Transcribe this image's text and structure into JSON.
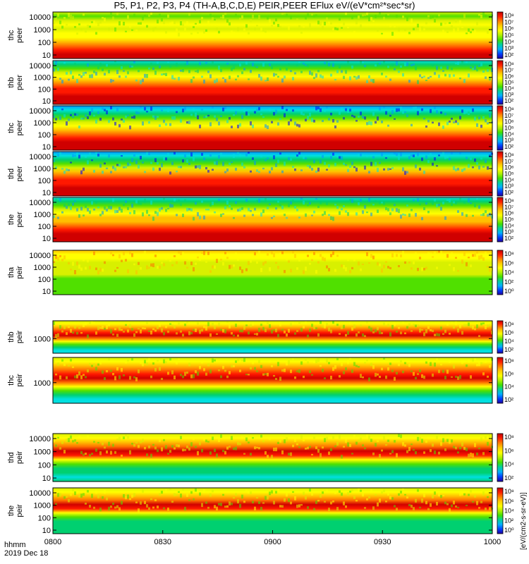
{
  "chart_data": {
    "type": "heatmap",
    "title": "P5, P1, P2, P3, P4 (TH-A,B,C,D,E) PEIR,PEER EFlux eV/(eV*cm²*sec*sr)",
    "x_axis": {
      "tick_labels": [
        "0800",
        "0830",
        "0900",
        "0930",
        "1000"
      ],
      "range": [
        "0800",
        "1000"
      ],
      "row_label": "hhmm",
      "date_label": "2019 Dec 18"
    },
    "colorbar_unit": "[eV/(cm2-s-sr-eV)]",
    "colorbar_scale": "log",
    "color_scale": [
      "#1a0078",
      "#0000ff",
      "#0096ff",
      "#00e0e0",
      "#00d070",
      "#50e000",
      "#d8f000",
      "#ffff00",
      "#ffc000",
      "#ff7000",
      "#ff1800",
      "#d00000"
    ],
    "panels": [
      {
        "name": "thc_peer",
        "label_top": "thc",
        "label_bot": "peer",
        "yticks": [
          "10000",
          "1000",
          "100",
          "10"
        ],
        "cbar_ticks": [
          "10⁸",
          "10⁷",
          "10⁶",
          "10⁵",
          "10⁴",
          "10³",
          "10²"
        ]
      },
      {
        "name": "thb_peer",
        "label_top": "thb",
        "label_bot": "peer",
        "yticks": [
          "10000",
          "1000",
          "100",
          "10"
        ],
        "cbar_ticks": [
          "10⁸",
          "10⁷",
          "10⁶",
          "10⁵",
          "10⁴",
          "10³",
          "10²"
        ]
      },
      {
        "name": "thc_peer2",
        "label_top": "thc",
        "label_bot": "peer",
        "yticks": [
          "10000",
          "1000",
          "100",
          "10"
        ],
        "cbar_ticks": [
          "10⁸",
          "10⁷",
          "10⁶",
          "10⁵",
          "10⁴",
          "10³",
          "10²"
        ]
      },
      {
        "name": "thd_peer",
        "label_top": "thd",
        "label_bot": "peer",
        "yticks": [
          "10000",
          "1000",
          "100",
          "10"
        ],
        "cbar_ticks": [
          "10⁸",
          "10⁷",
          "10⁶",
          "10⁵",
          "10⁴",
          "10³",
          "10²"
        ]
      },
      {
        "name": "the_peer",
        "label_top": "the",
        "label_bot": "peer",
        "yticks": [
          "10000",
          "1000",
          "100",
          "10"
        ],
        "cbar_ticks": [
          "10⁸",
          "10⁷",
          "10⁶",
          "10⁵",
          "10⁴",
          "10³",
          "10²"
        ]
      },
      {
        "name": "tha_peir",
        "label_top": "tha",
        "label_bot": "peir",
        "yticks": [
          "10000",
          "1000",
          "100",
          "10"
        ],
        "cbar_ticks": [
          "10⁸",
          "10⁶",
          "10⁴",
          "10²",
          "10⁰"
        ]
      },
      {
        "name": "thb_peir",
        "label_top": "thb",
        "label_bot": "peir",
        "yticks": [
          "1000"
        ],
        "cbar_ticks": [
          "10⁸",
          "10⁶",
          "10⁴",
          "10²"
        ]
      },
      {
        "name": "thc_peir",
        "label_top": "thc",
        "label_bot": "peir",
        "yticks": [
          "1000"
        ],
        "cbar_ticks": [
          "10⁸",
          "10⁶",
          "10⁴",
          "10²"
        ]
      },
      {
        "name": "thd_peir",
        "label_top": "thd",
        "label_bot": "peir",
        "yticks": [
          "10000",
          "1000",
          "100",
          "10"
        ],
        "cbar_ticks": [
          "10⁸",
          "10⁶",
          "10⁴",
          "10²"
        ]
      },
      {
        "name": "the_peir",
        "label_top": "the",
        "label_bot": "peir",
        "yticks": [
          "10000",
          "1000",
          "100",
          "10"
        ],
        "cbar_ticks": [
          "10⁸",
          "10⁶",
          "10⁴",
          "10²",
          "10⁰"
        ]
      }
    ]
  }
}
